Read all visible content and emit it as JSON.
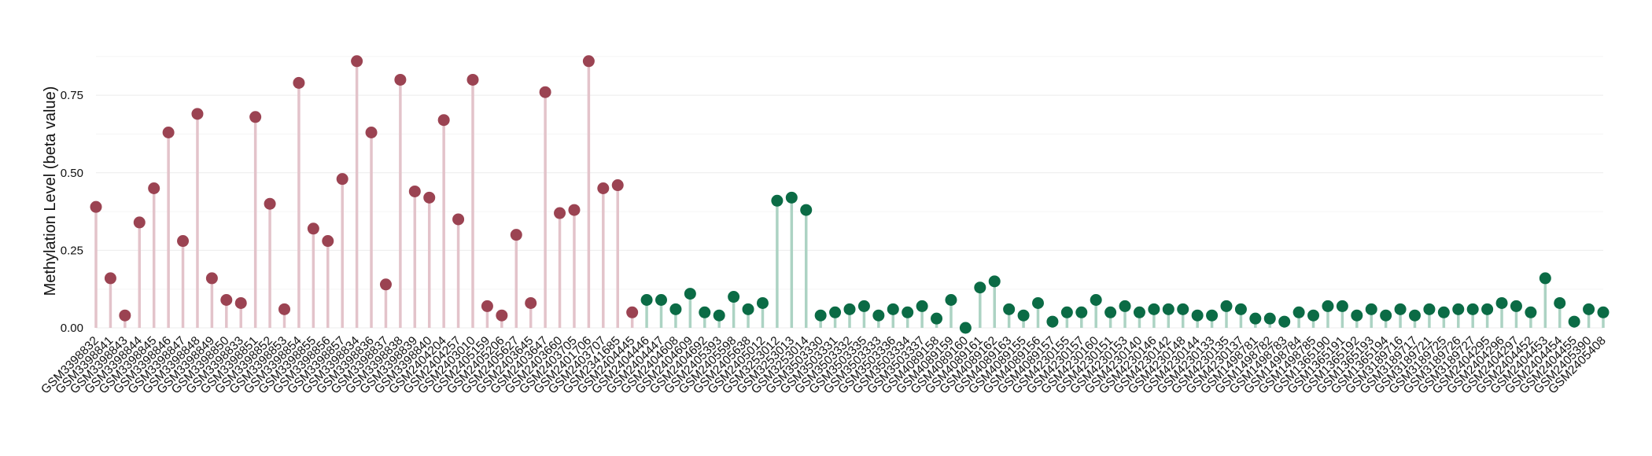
{
  "chart_data": {
    "type": "lollipop",
    "title": "",
    "xlabel": "",
    "ylabel": "Methylation Level (beta value)",
    "ylim": [
      0,
      0.9
    ],
    "yticks": [
      0.0,
      0.25,
      0.5,
      0.75
    ],
    "ytick_labels": [
      "0.00",
      "0.25",
      "0.50",
      "0.75"
    ],
    "grid": true,
    "colors": {
      "group1_point": "#9b4352",
      "group1_stem": "#e3c3ca",
      "group2_point": "#0b6b45",
      "group2_stem": "#acd3c3"
    },
    "groups": [
      {
        "points": [
          {
            "x": "GSM3398832",
            "y": 0.39
          },
          {
            "x": "GSM3398841",
            "y": 0.16
          },
          {
            "x": "GSM3398843",
            "y": 0.04
          },
          {
            "x": "GSM3398844",
            "y": 0.34
          },
          {
            "x": "GSM3398845",
            "y": 0.45
          },
          {
            "x": "GSM3398846",
            "y": 0.63
          },
          {
            "x": "GSM3398847",
            "y": 0.28
          },
          {
            "x": "GSM3398848",
            "y": 0.69
          },
          {
            "x": "GSM3398849",
            "y": 0.16
          },
          {
            "x": "GSM3398850",
            "y": 0.09
          },
          {
            "x": "GSM3398833",
            "y": 0.08
          },
          {
            "x": "GSM3398851",
            "y": 0.68
          },
          {
            "x": "GSM3398852",
            "y": 0.4
          },
          {
            "x": "GSM3398853",
            "y": 0.06
          },
          {
            "x": "GSM3398854",
            "y": 0.79
          },
          {
            "x": "GSM3398855",
            "y": 0.32
          },
          {
            "x": "GSM3398856",
            "y": 0.28
          },
          {
            "x": "GSM3398857",
            "y": 0.48
          },
          {
            "x": "GSM3398834",
            "y": 0.86
          },
          {
            "x": "GSM3398836",
            "y": 0.63
          },
          {
            "x": "GSM3398837",
            "y": 0.14
          },
          {
            "x": "GSM3398838",
            "y": 0.8
          },
          {
            "x": "GSM3398839",
            "y": 0.44
          },
          {
            "x": "GSM3398840",
            "y": 0.42
          },
          {
            "x": "GSM2404204",
            "y": 0.67
          },
          {
            "x": "GSM2404257",
            "y": 0.35
          },
          {
            "x": "GSM2403010",
            "y": 0.8
          },
          {
            "x": "GSM2405159",
            "y": 0.07
          },
          {
            "x": "GSM2405206",
            "y": 0.04
          },
          {
            "x": "GSM2405627",
            "y": 0.3
          },
          {
            "x": "GSM2403645",
            "y": 0.08
          },
          {
            "x": "GSM2403647",
            "y": 0.76
          },
          {
            "x": "GSM2403660",
            "y": 0.37
          },
          {
            "x": "GSM2403705",
            "y": 0.38
          },
          {
            "x": "GSM2401706",
            "y": 0.86
          },
          {
            "x": "GSM2403707",
            "y": 0.45
          },
          {
            "x": "GSM2341685",
            "y": 0.46
          },
          {
            "x": "GSM2404445",
            "y": 0.05
          }
        ]
      },
      {
        "points": [
          {
            "x": "GSM2404446",
            "y": 0.09
          },
          {
            "x": "GSM2404447",
            "y": 0.09
          },
          {
            "x": "GSM2404608",
            "y": 0.06
          },
          {
            "x": "GSM2404609",
            "y": 0.11
          },
          {
            "x": "GSM2404692",
            "y": 0.05
          },
          {
            "x": "GSM2405393",
            "y": 0.04
          },
          {
            "x": "GSM2405598",
            "y": 0.1
          },
          {
            "x": "GSM2405638",
            "y": 0.06
          },
          {
            "x": "GSM2405012",
            "y": 0.08
          },
          {
            "x": "GSM3253012",
            "y": 0.41
          },
          {
            "x": "GSM3253013",
            "y": 0.42
          },
          {
            "x": "GSM3253014",
            "y": 0.38
          },
          {
            "x": "GSM3503330",
            "y": 0.04
          },
          {
            "x": "GSM3503331",
            "y": 0.05
          },
          {
            "x": "GSM3503332",
            "y": 0.06
          },
          {
            "x": "GSM3503335",
            "y": 0.07
          },
          {
            "x": "GSM3503333",
            "y": 0.04
          },
          {
            "x": "GSM3503336",
            "y": 0.06
          },
          {
            "x": "GSM3503334",
            "y": 0.05
          },
          {
            "x": "GSM3503337",
            "y": 0.07
          },
          {
            "x": "GSM4089158",
            "y": 0.03
          },
          {
            "x": "GSM4089159",
            "y": 0.09
          },
          {
            "x": "GSM4089160",
            "y": 0.0
          },
          {
            "x": "GSM4089161",
            "y": 0.13
          },
          {
            "x": "GSM4089162",
            "y": 0.15
          },
          {
            "x": "GSM4089163",
            "y": 0.06
          },
          {
            "x": "GSM4089155",
            "y": 0.04
          },
          {
            "x": "GSM4089156",
            "y": 0.08
          },
          {
            "x": "GSM4089157",
            "y": 0.02
          },
          {
            "x": "GSM4230155",
            "y": 0.05
          },
          {
            "x": "GSM4230157",
            "y": 0.05
          },
          {
            "x": "GSM4230160",
            "y": 0.09
          },
          {
            "x": "GSM4230151",
            "y": 0.05
          },
          {
            "x": "GSM4230153",
            "y": 0.07
          },
          {
            "x": "GSM4230140",
            "y": 0.05
          },
          {
            "x": "GSM4230146",
            "y": 0.06
          },
          {
            "x": "GSM4230142",
            "y": 0.06
          },
          {
            "x": "GSM4230148",
            "y": 0.06
          },
          {
            "x": "GSM4230144",
            "y": 0.04
          },
          {
            "x": "GSM4230133",
            "y": 0.04
          },
          {
            "x": "GSM4230135",
            "y": 0.07
          },
          {
            "x": "GSM4230137",
            "y": 0.06
          },
          {
            "x": "GSM1498781",
            "y": 0.03
          },
          {
            "x": "GSM1498782",
            "y": 0.03
          },
          {
            "x": "GSM1498783",
            "y": 0.02
          },
          {
            "x": "GSM1498784",
            "y": 0.05
          },
          {
            "x": "GSM1498785",
            "y": 0.04
          },
          {
            "x": "GSM1365190",
            "y": 0.07
          },
          {
            "x": "GSM1365191",
            "y": 0.07
          },
          {
            "x": "GSM1365192",
            "y": 0.04
          },
          {
            "x": "GSM1365193",
            "y": 0.06
          },
          {
            "x": "GSM1365194",
            "y": 0.04
          },
          {
            "x": "GSM3189716",
            "y": 0.06
          },
          {
            "x": "GSM3189717",
            "y": 0.04
          },
          {
            "x": "GSM3189721",
            "y": 0.06
          },
          {
            "x": "GSM3189725",
            "y": 0.05
          },
          {
            "x": "GSM3189726",
            "y": 0.06
          },
          {
            "x": "GSM3189727",
            "y": 0.06
          },
          {
            "x": "GSM2404295",
            "y": 0.06
          },
          {
            "x": "GSM2404296",
            "y": 0.08
          },
          {
            "x": "GSM2404297",
            "y": 0.07
          },
          {
            "x": "GSM2404452",
            "y": 0.05
          },
          {
            "x": "GSM2404453",
            "y": 0.16
          },
          {
            "x": "GSM2404454",
            "y": 0.08
          },
          {
            "x": "GSM2404455",
            "y": 0.02
          },
          {
            "x": "GSM2405390",
            "y": 0.06
          },
          {
            "x": "GSM2405408",
            "y": 0.05
          }
        ]
      }
    ]
  }
}
